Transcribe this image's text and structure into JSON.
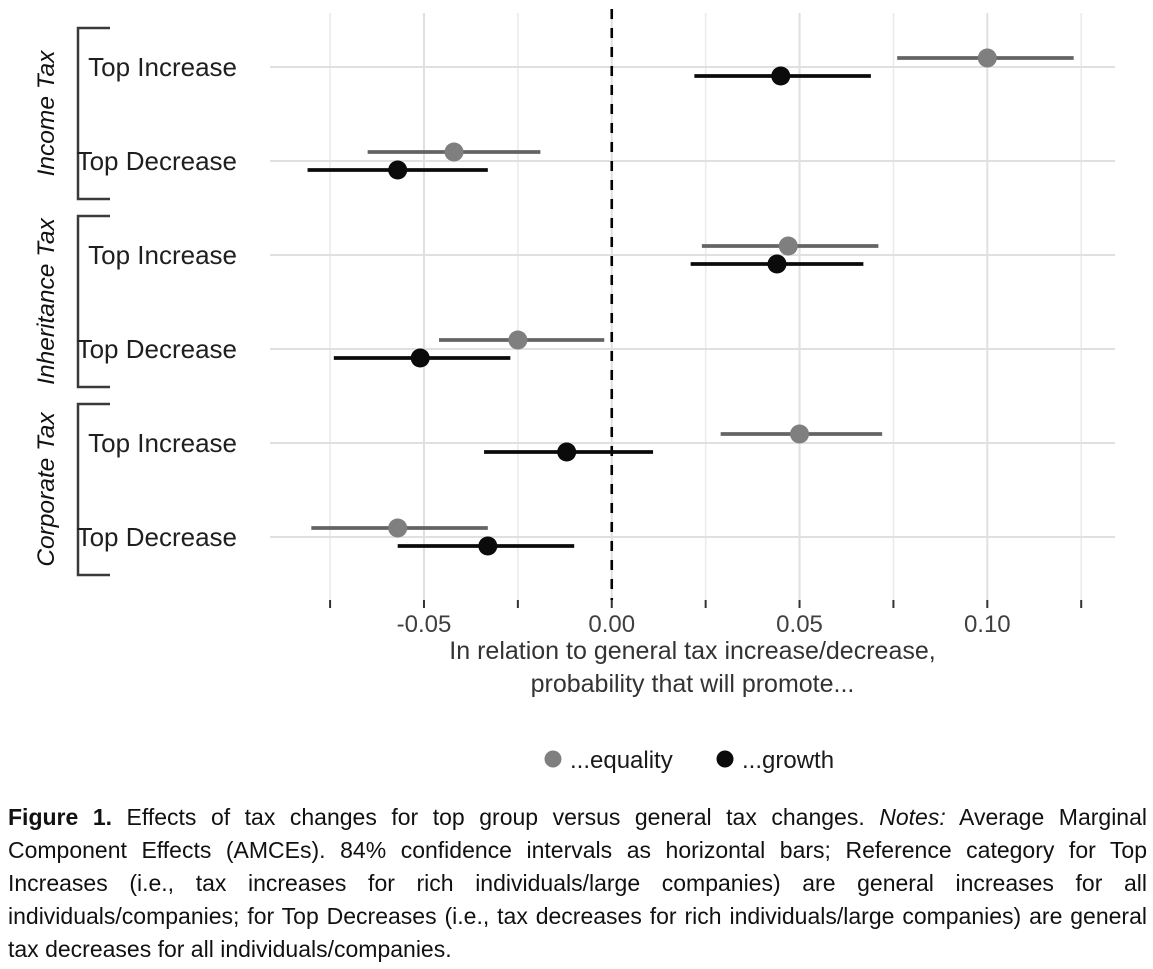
{
  "chart_data": {
    "type": "scatter",
    "subtype": "dot-and-whisker",
    "title": "",
    "xlabel_lines": [
      "In relation to general tax increase/decrease,",
      "probability that will promote..."
    ],
    "ylabel": "",
    "x_axis": {
      "xlim": [
        -0.091,
        0.134
      ],
      "tick_values": [
        -0.05,
        0.0,
        0.05,
        0.1
      ],
      "tick_labels": [
        "-0.05",
        "0.00",
        "0.05",
        "0.10"
      ],
      "minor_values": [
        -0.075,
        -0.025,
        0.025,
        0.075,
        0.125
      ],
      "zero_line_value": 0.0
    },
    "grid": true,
    "legend_position": "bottom",
    "error_bar_note": "84% confidence intervals",
    "series_meta": [
      {
        "key": "equality",
        "legend_label": "...equality",
        "color_dot": "#7f7f7f",
        "color_line": "#646464",
        "dodge": -9
      },
      {
        "key": "growth",
        "legend_label": "...growth",
        "color_dot": "#0b0b0b",
        "color_line": "#0b0b0b",
        "dodge": 9
      }
    ],
    "groups": [
      {
        "label": "Income Tax",
        "rows": [
          {
            "label": "Top Increase",
            "equality": {
              "est": 0.1,
              "lo": 0.076,
              "hi": 0.123
            },
            "growth": {
              "est": 0.045,
              "lo": 0.022,
              "hi": 0.069
            }
          },
          {
            "label": "Top Decrease",
            "equality": {
              "est": -0.042,
              "lo": -0.065,
              "hi": -0.019
            },
            "growth": {
              "est": -0.057,
              "lo": -0.081,
              "hi": -0.033
            }
          }
        ]
      },
      {
        "label": "Inheritance Tax",
        "rows": [
          {
            "label": "Top Increase",
            "equality": {
              "est": 0.047,
              "lo": 0.024,
              "hi": 0.071
            },
            "growth": {
              "est": 0.044,
              "lo": 0.021,
              "hi": 0.067
            }
          },
          {
            "label": "Top Decrease",
            "equality": {
              "est": -0.025,
              "lo": -0.046,
              "hi": -0.002
            },
            "growth": {
              "est": -0.051,
              "lo": -0.074,
              "hi": -0.027
            }
          }
        ]
      },
      {
        "label": "Corporate Tax",
        "rows": [
          {
            "label": "Top Increase",
            "equality": {
              "est": 0.05,
              "lo": 0.029,
              "hi": 0.072
            },
            "growth": {
              "est": -0.012,
              "lo": -0.034,
              "hi": 0.011
            }
          },
          {
            "label": "Top Decrease",
            "equality": {
              "est": -0.057,
              "lo": -0.08,
              "hi": -0.033
            },
            "growth": {
              "est": -0.033,
              "lo": -0.057,
              "hi": -0.01
            }
          }
        ]
      }
    ],
    "colors": {
      "grid_major": "#e0e0e0",
      "grid_minor": "#ebebeb",
      "tick": "#333333",
      "tick_label": "#404040",
      "axis_title": "#333333",
      "row_label": "#1f1f1f",
      "group_label": "#111111",
      "bracket": "#3a3a3a",
      "zero_line": "#000000"
    }
  },
  "caption": {
    "segments": [
      {
        "text": "Figure 1.",
        "style": "bold"
      },
      {
        "text": " Effects of tax changes for top group versus general tax changes. ",
        "style": "normal"
      },
      {
        "text": "Notes:",
        "style": "italic"
      },
      {
        "text": " Average Marginal Component Effects (AMCEs). 84% confidence intervals as horizontal bars; Reference category for Top Increases (i.e., tax increases for rich individuals/large companies) are general increases for all individuals/companies; for Top Decreases (i.e., tax decreases for rich individuals/large companies) are general tax decreases for all individuals/companies.",
        "style": "normal"
      }
    ]
  }
}
